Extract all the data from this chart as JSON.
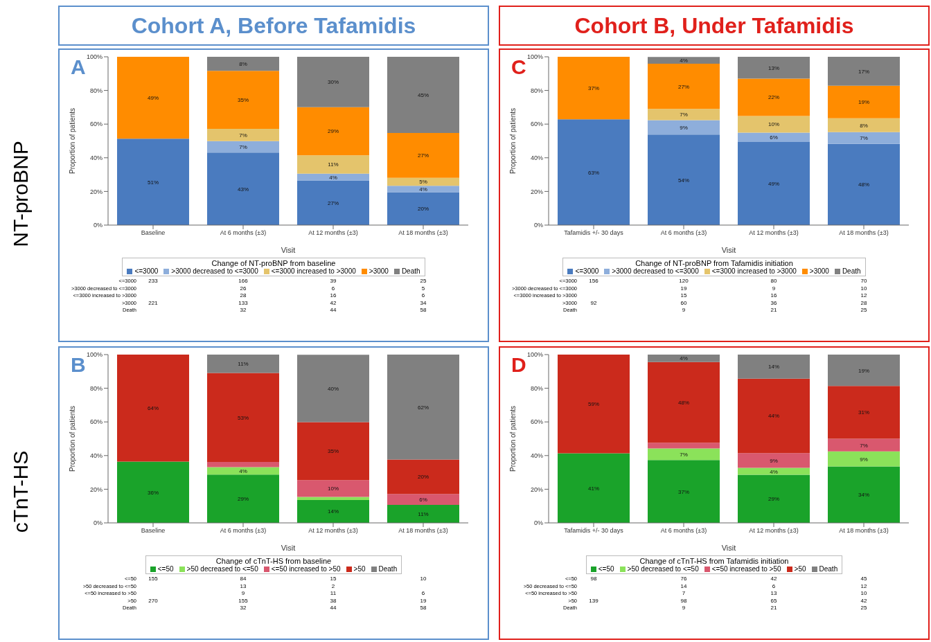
{
  "chart_data": [
    {
      "type": "bar",
      "stacked": true,
      "title": "Cohort A, Before Tafamidis",
      "subtitle": "A",
      "xlabel": "Visit",
      "ylabel": "Proportion of patients",
      "legend_title": "Change of NT-proBNP from baseline",
      "legend": "bottom",
      "categories": [
        "Baseline",
        "At 6 months (±3)",
        "At 12 months (±3)",
        "At 18 months (±3)"
      ],
      "ylim": [
        0,
        100
      ],
      "yticks": [
        {
          "value": 0,
          "label": "0%"
        },
        {
          "value": 20,
          "label": "20%"
        },
        {
          "value": 40,
          "label": "40%"
        },
        {
          "value": 60,
          "label": "60%"
        },
        {
          "value": 80,
          "label": "80%"
        },
        {
          "value": 100,
          "label": "100%"
        }
      ],
      "series": [
        {
          "name": "<=3000",
          "color": "#4a7bbf",
          "values": [
            51.3,
            43.1,
            26.5,
            19.5
          ],
          "value_labels": [
            "51%",
            "43%",
            "27%",
            "20%"
          ]
        },
        {
          "name": ">3000 decreased to <=3000",
          "color": "#8eaedb",
          "values": [
            null,
            6.8,
            4.1,
            3.9
          ],
          "value_labels": [
            null,
            "7%",
            "4%",
            "4%"
          ]
        },
        {
          "name": "<=3000 increased to >3000",
          "color": "#e4c46c",
          "values": [
            null,
            7.3,
            10.9,
            4.7
          ],
          "value_labels": [
            null,
            "7%",
            "11%",
            "5%"
          ]
        },
        {
          "name": ">3000",
          "color": "#ff8c00",
          "values": [
            48.7,
            34.5,
            28.6,
            26.6
          ],
          "value_labels": [
            "49%",
            "35%",
            "29%",
            "27%"
          ]
        },
        {
          "name": "Death",
          "color": "#808080",
          "values": [
            null,
            8.3,
            29.9,
            45.3
          ],
          "value_labels": [
            null,
            "8%",
            "30%",
            "45%"
          ]
        }
      ],
      "annotations": [
        "NT-proBNP",
        "<=3000",
        "233",
        "166",
        "39",
        "25",
        ">3000 decreased to <=3000",
        null,
        "26",
        "6",
        "5",
        "<=3000 increased to >3000",
        null,
        "28",
        "16",
        "6",
        ">3000",
        "221",
        "133",
        "42",
        "34",
        "Death",
        null,
        "32",
        "44",
        "58"
      ]
    },
    {
      "type": "bar",
      "stacked": true,
      "title": "Cohort B, Under Tafamidis",
      "subtitle": "C",
      "xlabel": "Visit",
      "ylabel": "Proportion of patients",
      "legend_title": "Change of NT-proBNP from Tafamidis initiation",
      "legend": "bottom",
      "categories": [
        "Tafamidis +/- 30 days",
        "At 6 months (±3)",
        "At 12 months (±3)",
        "At 18 months (±3)"
      ],
      "ylim": [
        0,
        100
      ],
      "yticks": [
        {
          "value": 0,
          "label": "0%"
        },
        {
          "value": 20,
          "label": "20%"
        },
        {
          "value": 40,
          "label": "40%"
        },
        {
          "value": 60,
          "label": "60%"
        },
        {
          "value": 80,
          "label": "80%"
        },
        {
          "value": 100,
          "label": "100%"
        }
      ],
      "series": [
        {
          "name": "<=3000",
          "color": "#4a7bbf",
          "values": [
            62.9,
            53.8,
            49.38,
            48.3
          ],
          "value_labels": [
            "63%",
            "54%",
            "49%",
            "48%"
          ]
        },
        {
          "name": ">3000 decreased to <=3000",
          "color": "#8eaedb",
          "values": [
            null,
            8.5,
            5.56,
            6.9
          ],
          "value_labels": [
            null,
            "9%",
            "6%",
            "7%"
          ]
        },
        {
          "name": "<=3000 increased to >3000",
          "color": "#e4c46c",
          "values": [
            null,
            6.7,
            9.88,
            8.3
          ],
          "value_labels": [
            null,
            "7%",
            "10%",
            "8%"
          ]
        },
        {
          "name": ">3000",
          "color": "#ff8c00",
          "values": [
            37.1,
            26.9,
            22.22,
            19.3
          ],
          "value_labels": [
            "37%",
            "27%",
            "22%",
            "19%"
          ]
        },
        {
          "name": "Death",
          "color": "#808080",
          "values": [
            null,
            4.0,
            12.96,
            17.2
          ],
          "value_labels": [
            null,
            "4%",
            "13%",
            "17%"
          ]
        }
      ],
      "annotations": [
        "<=3000",
        "156",
        "120",
        "80",
        "70",
        ">3000 decreased to <=3000",
        null,
        "19",
        "9",
        "10",
        "<=3000 increased to >3000",
        null,
        "15",
        "16",
        "12",
        ">3000",
        "92",
        "60",
        "36",
        "28",
        "Death",
        null,
        "9",
        "21",
        "25"
      ]
    },
    {
      "type": "bar",
      "stacked": true,
      "subtitle": "B",
      "xlabel": "Visit",
      "ylabel": "Proportion of patients",
      "legend_title": "Change of cTnT-HS from baseline",
      "legend": "bottom",
      "categories": [
        "Baseline",
        "At 6 months (±3)",
        "At 12 months (±3)",
        "At 18 months (±3)"
      ],
      "ylim": [
        0,
        100
      ],
      "yticks": [
        {
          "value": 0,
          "label": "0%"
        },
        {
          "value": 20,
          "label": "20%"
        },
        {
          "value": 40,
          "label": "40%"
        },
        {
          "value": 60,
          "label": "60%"
        },
        {
          "value": 80,
          "label": "80%"
        },
        {
          "value": 100,
          "label": "100%"
        }
      ],
      "series": [
        {
          "name": "<=50",
          "color": "#1aa32a",
          "values": [
            36.47,
            28.7,
            13.6,
            10.75
          ],
          "value_labels": [
            "36%",
            "29%",
            "14%",
            "11%"
          ]
        },
        {
          "name": ">50 decreased to <=50",
          "color": "#8be25a",
          "values": [
            null,
            4.4,
            1.8,
            0
          ],
          "value_labels": [
            null,
            "4%",
            null,
            null
          ]
        },
        {
          "name": "<=50 increased to >50",
          "color": "#d9586e",
          "values": [
            null,
            3.1,
            10.0,
            6.45
          ],
          "value_labels": [
            null,
            null,
            "10%",
            "6%"
          ]
        },
        {
          "name": ">50",
          "color": "#cb2a1c",
          "values": [
            63.53,
            52.9,
            34.5,
            20.43
          ],
          "value_labels": [
            "64%",
            "53%",
            "35%",
            "20%"
          ]
        },
        {
          "name": "Death",
          "color": "#808080",
          "values": [
            null,
            10.9,
            40.0,
            62.37
          ],
          "value_labels": [
            null,
            "11%",
            "40%",
            "62%"
          ]
        }
      ],
      "annotations": [
        "cTnT-HS",
        "<=50",
        "155",
        "84",
        "15",
        "10",
        ">50 decreased to <=50",
        null,
        "13",
        "2",
        null,
        "<=50 increased to >50",
        null,
        "9",
        "11",
        "6",
        ">50",
        "270",
        "155",
        "38",
        "19",
        "Death",
        null,
        "32",
        "44",
        "58"
      ]
    },
    {
      "type": "bar",
      "stacked": true,
      "subtitle": "D",
      "xlabel": "Visit",
      "ylabel": "Proportion of patients",
      "legend_title": "Change of cTnT-HS from Tafamidis initiation",
      "legend": "bottom",
      "categories": [
        "Tafamidis +/- 30 days",
        "At 6 months (±3)",
        "At 12 months (±3)",
        "At 18 months (±3)"
      ],
      "ylim": [
        0,
        100
      ],
      "yticks": [
        {
          "value": 0,
          "label": "0%"
        },
        {
          "value": 20,
          "label": "20%"
        },
        {
          "value": 40,
          "label": "40%"
        },
        {
          "value": 60,
          "label": "60%"
        },
        {
          "value": 80,
          "label": "80%"
        },
        {
          "value": 100,
          "label": "100%"
        }
      ],
      "series": [
        {
          "name": "<=50",
          "color": "#1aa32a",
          "values": [
            41.35,
            37.3,
            28.6,
            33.58
          ],
          "value_labels": [
            "41%",
            "37%",
            "29%",
            "34%"
          ]
        },
        {
          "name": ">50 decreased to <=50",
          "color": "#8be25a",
          "values": [
            null,
            6.9,
            4.1,
            8.96
          ],
          "value_labels": [
            null,
            "7%",
            "4%",
            "9%"
          ]
        },
        {
          "name": "<=50 increased to >50",
          "color": "#d9586e",
          "values": [
            null,
            3.4,
            8.8,
            7.46
          ],
          "value_labels": [
            null,
            null,
            "9%",
            "7%"
          ]
        },
        {
          "name": ">50",
          "color": "#cb2a1c",
          "values": [
            58.65,
            48.0,
            44.2,
            31.34
          ],
          "value_labels": [
            "59%",
            "48%",
            "44%",
            "31%"
          ]
        },
        {
          "name": "Death",
          "color": "#808080",
          "values": [
            null,
            4.4,
            14.3,
            18.66
          ],
          "value_labels": [
            null,
            "4%",
            "14%",
            "19%"
          ]
        }
      ],
      "annotations": [
        "<=50",
        "98",
        "76",
        "42",
        "45",
        ">50 decreased to <=50",
        null,
        "14",
        "6",
        "12",
        "<=50 increased to >50",
        null,
        "7",
        "13",
        "10",
        ">50",
        "139",
        "98",
        "65",
        "42",
        "Death",
        null,
        "9",
        "21",
        "25"
      ]
    }
  ]
}
